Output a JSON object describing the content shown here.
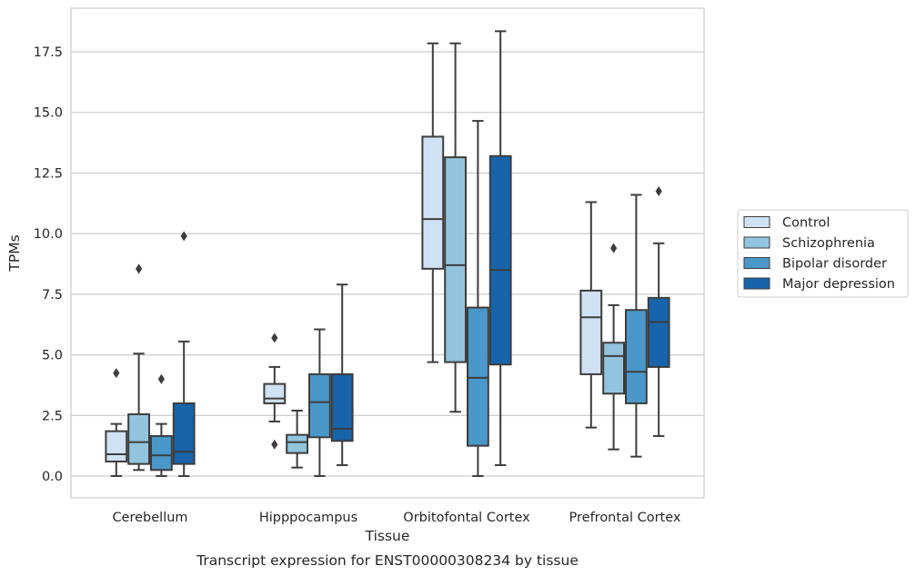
{
  "caption": "Transcript expression for ENST00000308234 by tissue",
  "colors": {
    "Control": "#cfe1f2",
    "Schizophrenia": "#93c4de",
    "Bipolar disorder": "#4a98c9",
    "Major depression": "#1764ab",
    "line": "#3d3d3d",
    "grid": "#cccccc"
  },
  "chart_data": {
    "type": "box",
    "title": "",
    "xlabel": "Tissue",
    "ylabel": "TPMs",
    "ylim": [
      -0.9,
      19.3
    ],
    "yticks": [
      0.0,
      2.5,
      5.0,
      7.5,
      10.0,
      12.5,
      15.0,
      17.5
    ],
    "ytick_labels": [
      "0.0",
      "2.5",
      "5.0",
      "7.5",
      "10.0",
      "12.5",
      "15.0",
      "17.5"
    ],
    "grid": "horizontal",
    "legend": "right",
    "categories": [
      "Cerebellum",
      "Hipppocampus",
      "Orbitofontal Cortex",
      "Prefrontal Cortex"
    ],
    "series": [
      {
        "name": "Control",
        "boxes": [
          {
            "whislo": 0.0,
            "q1": 0.6,
            "med": 0.9,
            "q3": 1.85,
            "whishi": 2.15,
            "fliers": [
              4.25
            ]
          },
          {
            "whislo": 2.25,
            "q1": 3.0,
            "med": 3.2,
            "q3": 3.8,
            "whishi": 4.5,
            "fliers": [
              5.7,
              1.3
            ]
          },
          {
            "whislo": 4.7,
            "q1": 8.55,
            "med": 10.6,
            "q3": 14.0,
            "whishi": 17.85,
            "fliers": []
          },
          {
            "whislo": 2.0,
            "q1": 4.2,
            "med": 6.55,
            "q3": 7.65,
            "whishi": 11.3,
            "fliers": []
          }
        ]
      },
      {
        "name": "Schizophrenia",
        "boxes": [
          {
            "whislo": 0.25,
            "q1": 0.5,
            "med": 1.4,
            "q3": 2.55,
            "whishi": 5.05,
            "fliers": [
              8.55
            ]
          },
          {
            "whislo": 0.35,
            "q1": 0.95,
            "med": 1.4,
            "q3": 1.7,
            "whishi": 2.7,
            "fliers": []
          },
          {
            "whislo": 2.65,
            "q1": 4.7,
            "med": 8.7,
            "q3": 13.15,
            "whishi": 17.85,
            "fliers": []
          },
          {
            "whislo": 1.1,
            "q1": 3.4,
            "med": 4.95,
            "q3": 5.5,
            "whishi": 7.05,
            "fliers": [
              9.4
            ]
          }
        ]
      },
      {
        "name": "Bipolar disorder",
        "boxes": [
          {
            "whislo": 0.0,
            "q1": 0.25,
            "med": 0.85,
            "q3": 1.65,
            "whishi": 2.15,
            "fliers": [
              4.0
            ]
          },
          {
            "whislo": 0.0,
            "q1": 1.6,
            "med": 3.05,
            "q3": 4.2,
            "whishi": 6.05,
            "fliers": []
          },
          {
            "whislo": 0.0,
            "q1": 1.25,
            "med": 4.05,
            "q3": 6.95,
            "whishi": 14.65,
            "fliers": []
          },
          {
            "whislo": 0.8,
            "q1": 3.0,
            "med": 4.3,
            "q3": 6.85,
            "whishi": 11.6,
            "fliers": []
          }
        ]
      },
      {
        "name": "Major depression",
        "boxes": [
          {
            "whislo": 0.0,
            "q1": 0.5,
            "med": 1.0,
            "q3": 3.0,
            "whishi": 5.55,
            "fliers": [
              9.9
            ]
          },
          {
            "whislo": 0.45,
            "q1": 1.45,
            "med": 1.95,
            "q3": 4.2,
            "whishi": 7.9,
            "fliers": []
          },
          {
            "whislo": 0.45,
            "q1": 4.6,
            "med": 8.5,
            "q3": 13.2,
            "whishi": 18.35,
            "fliers": []
          },
          {
            "whislo": 1.65,
            "q1": 4.5,
            "med": 6.35,
            "q3": 7.35,
            "whishi": 9.6,
            "fliers": [
              11.75
            ]
          }
        ]
      }
    ]
  }
}
